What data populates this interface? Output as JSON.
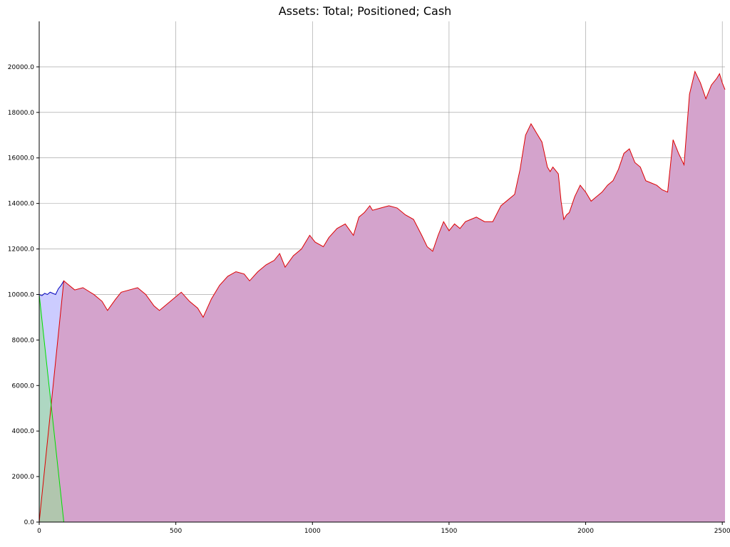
{
  "chart_data": {
    "type": "area",
    "title": "Assets: Total; Positioned; Cash",
    "xlabel": "",
    "ylabel": "",
    "xlim": [
      0,
      2510
    ],
    "ylim": [
      0,
      22000
    ],
    "grid": true,
    "x_ticks": [
      0,
      500,
      1000,
      1500,
      2000,
      2500
    ],
    "x_tick_labels": [
      "0",
      "500",
      "1000",
      "1500",
      "2000",
      "2500"
    ],
    "y_ticks": [
      0,
      2000,
      4000,
      6000,
      8000,
      10000,
      12000,
      14000,
      16000,
      18000,
      20000
    ],
    "y_tick_labels": [
      "0.0",
      "2000.0",
      "4000.0",
      "6000.0",
      "8000.0",
      "10000.0",
      "12000.0",
      "14000.0",
      "16000.0",
      "18000.0",
      "20000.0"
    ],
    "series": [
      {
        "color": "#0000bb",
        "fill": "#ccccff",
        "x": [
          0,
          10,
          20,
          30,
          40,
          50,
          60,
          70,
          80,
          90
        ],
        "y": [
          10000,
          9950,
          10050,
          10000,
          10100,
          10050,
          10000,
          10250,
          10400,
          10600
        ]
      },
      {
        "color": "#00dd00",
        "fill": "#99dd99",
        "x": [
          0,
          90,
          100,
          2510
        ],
        "y": [
          10000,
          0,
          0,
          0
        ]
      },
      {
        "color": "#dd0000",
        "fill": "#d4a3cc",
        "x": [
          0,
          90,
          100,
          130,
          160,
          200,
          230,
          250,
          280,
          300,
          330,
          360,
          390,
          420,
          440,
          470,
          500,
          520,
          550,
          580,
          600,
          630,
          660,
          690,
          720,
          750,
          770,
          800,
          830,
          860,
          880,
          900,
          930,
          960,
          990,
          1010,
          1040,
          1060,
          1090,
          1120,
          1150,
          1170,
          1190,
          1210,
          1220,
          1250,
          1280,
          1310,
          1340,
          1370,
          1400,
          1420,
          1440,
          1460,
          1480,
          1500,
          1520,
          1540,
          1560,
          1580,
          1600,
          1630,
          1660,
          1690,
          1710,
          1740,
          1760,
          1780,
          1800,
          1810,
          1820,
          1840,
          1860,
          1870,
          1880,
          1900,
          1910,
          1920,
          1930,
          1940,
          1960,
          1980,
          2000,
          2020,
          2040,
          2060,
          2080,
          2100,
          2120,
          2140,
          2160,
          2180,
          2200,
          2220,
          2240,
          2260,
          2280,
          2300,
          2320,
          2340,
          2360,
          2380,
          2400,
          2420,
          2440,
          2460,
          2480,
          2490,
          2500,
          2510
        ],
        "y": [
          0,
          10600,
          10500,
          10200,
          10300,
          10000,
          9700,
          9300,
          9800,
          10100,
          10200,
          10300,
          10000,
          9500,
          9300,
          9600,
          9900,
          10100,
          9700,
          9400,
          9000,
          9800,
          10400,
          10800,
          11000,
          10900,
          10600,
          11000,
          11300,
          11500,
          11800,
          11200,
          11700,
          12000,
          12600,
          12300,
          12100,
          12500,
          12900,
          13100,
          12600,
          13400,
          13600,
          13900,
          13700,
          13800,
          13900,
          13800,
          13500,
          13300,
          12600,
          12100,
          11900,
          12600,
          13200,
          12800,
          13100,
          12900,
          13200,
          13300,
          13400,
          13200,
          13200,
          13900,
          14100,
          14400,
          15500,
          17000,
          17500,
          17300,
          17100,
          16700,
          15600,
          15400,
          15600,
          15300,
          14100,
          13300,
          13500,
          13600,
          14300,
          14800,
          14500,
          14100,
          14300,
          14500,
          14800,
          15000,
          15500,
          16200,
          16400,
          15800,
          15600,
          15000,
          14900,
          14800,
          14600,
          14500,
          16800,
          16200,
          15700,
          18800,
          19800,
          19300,
          18600,
          19200,
          19500,
          19700,
          19300,
          19000
        ]
      }
    ]
  }
}
